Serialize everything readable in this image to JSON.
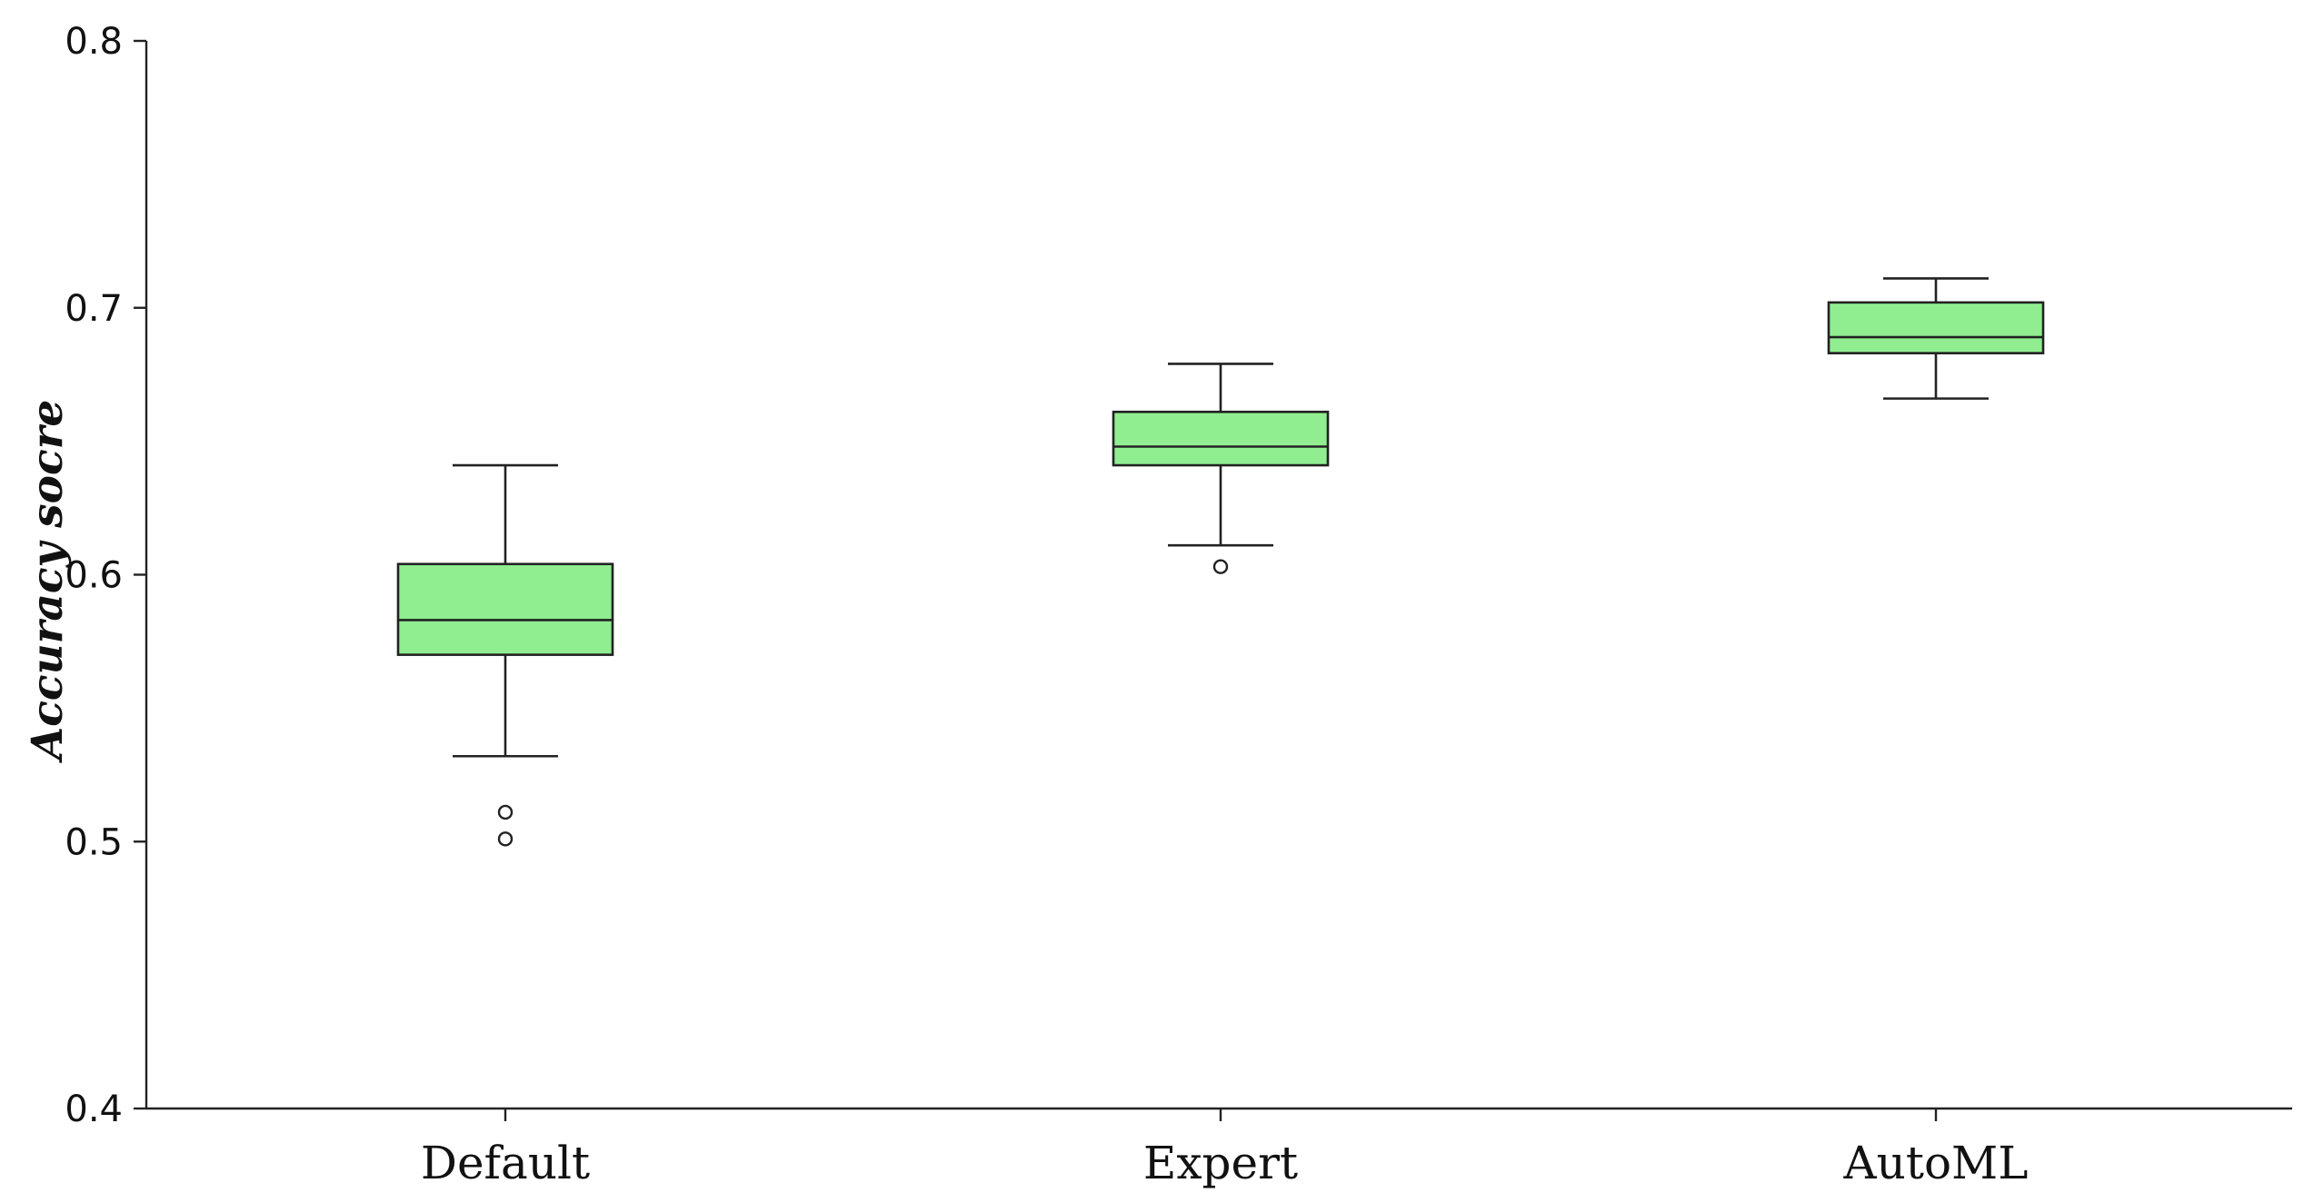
{
  "chart_data": {
    "type": "box",
    "categories": [
      "Default",
      "Expert",
      "AutoML"
    ],
    "ylabel": "Accuracy socre",
    "xlabel": "",
    "ylim": [
      0.4,
      0.8
    ],
    "yticks": [
      "0.4",
      "0.5",
      "0.6",
      "0.7",
      "0.8"
    ],
    "grid": false,
    "legend": "none",
    "box_color": "#90ee90",
    "boxes": [
      {
        "category": "Default",
        "whisker_low": 0.532,
        "q1": 0.57,
        "median": 0.583,
        "q3": 0.604,
        "whisker_high": 0.641,
        "outliers": [
          0.511,
          0.501
        ]
      },
      {
        "category": "Expert",
        "whisker_low": 0.611,
        "q1": 0.641,
        "median": 0.648,
        "q3": 0.661,
        "whisker_high": 0.679,
        "outliers": [
          0.603
        ]
      },
      {
        "category": "AutoML",
        "whisker_low": 0.666,
        "q1": 0.683,
        "median": 0.689,
        "q3": 0.702,
        "whisker_high": 0.711,
        "outliers": []
      }
    ]
  }
}
